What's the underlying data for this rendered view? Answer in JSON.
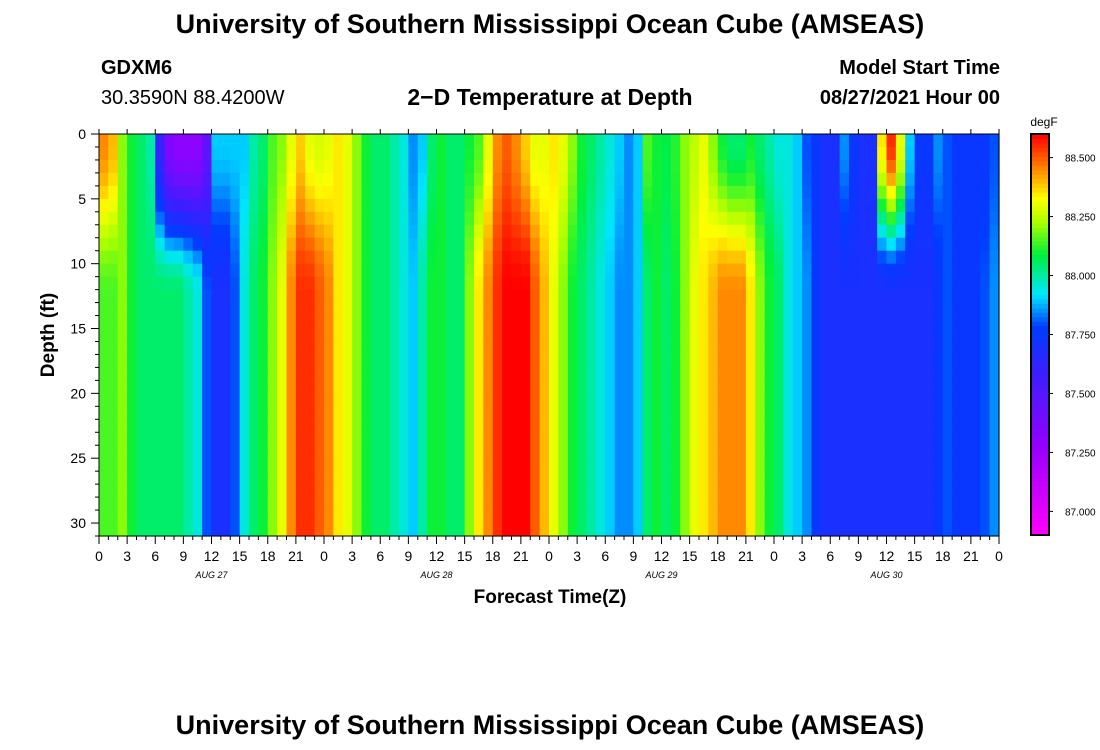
{
  "page_title": "University of Southern Mississippi Ocean Cube (AMSEAS)",
  "footer_title": "University of Southern Mississippi Ocean Cube (AMSEAS)",
  "station": {
    "id": "GDXM6",
    "coords": "30.3590N  88.4200W"
  },
  "model_start": {
    "label": "Model Start Time",
    "value": "08/27/2021 Hour 00"
  },
  "chart_data": {
    "type": "heatmap",
    "title": "2−D Temperature at Depth",
    "xlabel": "Forecast Time(Z)",
    "ylabel": "Depth (ft)",
    "x_hours": [
      0,
      96
    ],
    "ylim": [
      0,
      31
    ],
    "y_ticks": [
      0,
      5,
      10,
      15,
      20,
      25,
      30
    ],
    "x_tick_labels": [
      "0",
      "3",
      "6",
      "9",
      "12",
      "15",
      "18",
      "21",
      "0",
      "3",
      "6",
      "9",
      "12",
      "15",
      "18",
      "21",
      "0",
      "3",
      "6",
      "9",
      "12",
      "15",
      "18",
      "21",
      "0",
      "3",
      "6",
      "9",
      "12",
      "15",
      "18",
      "21",
      "0"
    ],
    "date_labels": [
      {
        "text": "AUG 27",
        "hour": 12
      },
      {
        "text": "AUG 28",
        "hour": 36
      },
      {
        "text": "AUG 29",
        "hour": 60
      },
      {
        "text": "AUG 30",
        "hour": 84
      }
    ],
    "colorbar": {
      "unit": "degF",
      "min": 86.9,
      "max": 88.6,
      "ticks": [
        "88.500",
        "88.250",
        "88.000",
        "87.750",
        "87.500",
        "87.250",
        "87.000"
      ],
      "tick_values": [
        88.5,
        88.25,
        88.0,
        87.75,
        87.5,
        87.25,
        87.0
      ]
    },
    "surface_profile": [
      {
        "hour": 0,
        "temp": 88.45
      },
      {
        "hour": 1,
        "temp": 88.4
      },
      {
        "hour": 2,
        "temp": 88.2
      },
      {
        "hour": 3,
        "temp": 88.1
      },
      {
        "hour": 4,
        "temp": 88.05
      },
      {
        "hour": 5,
        "temp": 88.0
      },
      {
        "hour": 6,
        "temp": 87.6
      },
      {
        "hour": 7,
        "temp": 87.35
      },
      {
        "hour": 8,
        "temp": 87.3
      },
      {
        "hour": 9,
        "temp": 87.3
      },
      {
        "hour": 10,
        "temp": 87.3
      },
      {
        "hour": 11,
        "temp": 87.45
      },
      {
        "hour": 12,
        "temp": 87.9
      },
      {
        "hour": 13,
        "temp": 87.9
      },
      {
        "hour": 14,
        "temp": 87.9
      },
      {
        "hour": 15,
        "temp": 87.9
      },
      {
        "hour": 16,
        "temp": 88.0
      },
      {
        "hour": 17,
        "temp": 88.05
      },
      {
        "hour": 18,
        "temp": 88.15
      },
      {
        "hour": 19,
        "temp": 88.2
      },
      {
        "hour": 20,
        "temp": 88.3
      },
      {
        "hour": 21,
        "temp": 88.38
      },
      {
        "hour": 22,
        "temp": 88.3
      },
      {
        "hour": 23,
        "temp": 88.28
      },
      {
        "hour": 24,
        "temp": 88.3
      },
      {
        "hour": 25,
        "temp": 88.35
      },
      {
        "hour": 26,
        "temp": 88.3
      },
      {
        "hour": 27,
        "temp": 88.2
      },
      {
        "hour": 28,
        "temp": 88.1
      },
      {
        "hour": 29,
        "temp": 88.05
      },
      {
        "hour": 30,
        "temp": 88.05
      },
      {
        "hour": 31,
        "temp": 88.0
      },
      {
        "hour": 32,
        "temp": 87.95
      },
      {
        "hour": 33,
        "temp": 87.85
      },
      {
        "hour": 34,
        "temp": 87.9
      },
      {
        "hour": 35,
        "temp": 88.05
      },
      {
        "hour": 36,
        "temp": 88.1
      },
      {
        "hour": 37,
        "temp": 88.05
      },
      {
        "hour": 38,
        "temp": 88.05
      },
      {
        "hour": 39,
        "temp": 88.1
      },
      {
        "hour": 40,
        "temp": 88.15
      },
      {
        "hour": 41,
        "temp": 88.3
      },
      {
        "hour": 42,
        "temp": 88.45
      },
      {
        "hour": 43,
        "temp": 88.5
      },
      {
        "hour": 44,
        "temp": 88.45
      },
      {
        "hour": 45,
        "temp": 88.38
      },
      {
        "hour": 46,
        "temp": 88.3
      },
      {
        "hour": 47,
        "temp": 88.3
      },
      {
        "hour": 48,
        "temp": 88.35
      },
      {
        "hour": 49,
        "temp": 88.3
      },
      {
        "hour": 50,
        "temp": 88.2
      },
      {
        "hour": 51,
        "temp": 88.1
      },
      {
        "hour": 52,
        "temp": 88.05
      },
      {
        "hour": 53,
        "temp": 88.0
      },
      {
        "hour": 54,
        "temp": 87.95
      },
      {
        "hour": 55,
        "temp": 87.9
      },
      {
        "hour": 56,
        "temp": 87.85
      },
      {
        "hour": 57,
        "temp": 87.9
      },
      {
        "hour": 58,
        "temp": 88.15
      },
      {
        "hour": 59,
        "temp": 88.1
      },
      {
        "hour": 60,
        "temp": 88.08
      },
      {
        "hour": 61,
        "temp": 88.12
      },
      {
        "hour": 62,
        "temp": 88.2
      },
      {
        "hour": 63,
        "temp": 88.25
      },
      {
        "hour": 64,
        "temp": 88.3
      },
      {
        "hour": 65,
        "temp": 88.2
      },
      {
        "hour": 66,
        "temp": 88.1
      },
      {
        "hour": 67,
        "temp": 88.05
      },
      {
        "hour": 68,
        "temp": 88.05
      },
      {
        "hour": 69,
        "temp": 88.1
      },
      {
        "hour": 70,
        "temp": 88.05
      },
      {
        "hour": 71,
        "temp": 88.0
      },
      {
        "hour": 72,
        "temp": 87.95
      },
      {
        "hour": 73,
        "temp": 87.95
      },
      {
        "hour": 74,
        "temp": 87.9
      },
      {
        "hour": 75,
        "temp": 87.8
      },
      {
        "hour": 76,
        "temp": 87.75
      },
      {
        "hour": 77,
        "temp": 87.7
      },
      {
        "hour": 78,
        "temp": 87.7
      },
      {
        "hour": 79,
        "temp": 87.85
      },
      {
        "hour": 80,
        "temp": 87.75
      },
      {
        "hour": 81,
        "temp": 87.7
      },
      {
        "hour": 82,
        "temp": 87.7
      },
      {
        "hour": 83,
        "temp": 88.35
      },
      {
        "hour": 84,
        "temp": 88.55
      },
      {
        "hour": 85,
        "temp": 88.3
      },
      {
        "hour": 86,
        "temp": 87.9
      },
      {
        "hour": 87,
        "temp": 87.75
      },
      {
        "hour": 88,
        "temp": 87.75
      },
      {
        "hour": 89,
        "temp": 87.85
      },
      {
        "hour": 90,
        "temp": 87.8
      },
      {
        "hour": 91,
        "temp": 87.75
      },
      {
        "hour": 92,
        "temp": 87.75
      },
      {
        "hour": 93,
        "temp": 87.75
      },
      {
        "hour": 94,
        "temp": 87.75
      },
      {
        "hour": 95,
        "temp": 87.8
      },
      {
        "hour": 96,
        "temp": 87.85
      }
    ],
    "bottom_profile": [
      {
        "hour": 0,
        "temp": 88.15
      },
      {
        "hour": 1,
        "temp": 88.15
      },
      {
        "hour": 2,
        "temp": 88.2
      },
      {
        "hour": 3,
        "temp": 88.1
      },
      {
        "hour": 4,
        "temp": 88.05
      },
      {
        "hour": 5,
        "temp": 88.05
      },
      {
        "hour": 6,
        "temp": 88.05
      },
      {
        "hour": 7,
        "temp": 88.05
      },
      {
        "hour": 8,
        "temp": 88.05
      },
      {
        "hour": 9,
        "temp": 88.0
      },
      {
        "hour": 10,
        "temp": 87.95
      },
      {
        "hour": 11,
        "temp": 87.8
      },
      {
        "hour": 12,
        "temp": 87.7
      },
      {
        "hour": 13,
        "temp": 87.7
      },
      {
        "hour": 14,
        "temp": 87.8
      },
      {
        "hour": 15,
        "temp": 87.95
      },
      {
        "hour": 16,
        "temp": 88.05
      },
      {
        "hour": 17,
        "temp": 88.1
      },
      {
        "hour": 18,
        "temp": 88.2
      },
      {
        "hour": 19,
        "temp": 88.3
      },
      {
        "hour": 20,
        "temp": 88.45
      },
      {
        "hour": 21,
        "temp": 88.55
      },
      {
        "hour": 22,
        "temp": 88.55
      },
      {
        "hour": 23,
        "temp": 88.5
      },
      {
        "hour": 24,
        "temp": 88.45
      },
      {
        "hour": 25,
        "temp": 88.35
      },
      {
        "hour": 26,
        "temp": 88.3
      },
      {
        "hour": 27,
        "temp": 88.2
      },
      {
        "hour": 28,
        "temp": 88.1
      },
      {
        "hour": 29,
        "temp": 88.05
      },
      {
        "hour": 30,
        "temp": 88.05
      },
      {
        "hour": 31,
        "temp": 88.0
      },
      {
        "hour": 32,
        "temp": 87.95
      },
      {
        "hour": 33,
        "temp": 87.9
      },
      {
        "hour": 34,
        "temp": 88.0
      },
      {
        "hour": 35,
        "temp": 88.1
      },
      {
        "hour": 36,
        "temp": 88.1
      },
      {
        "hour": 37,
        "temp": 88.05
      },
      {
        "hour": 38,
        "temp": 88.05
      },
      {
        "hour": 39,
        "temp": 88.2
      },
      {
        "hour": 40,
        "temp": 88.35
      },
      {
        "hour": 41,
        "temp": 88.45
      },
      {
        "hour": 42,
        "temp": 88.55
      },
      {
        "hour": 43,
        "temp": 88.6
      },
      {
        "hour": 44,
        "temp": 88.6
      },
      {
        "hour": 45,
        "temp": 88.6
      },
      {
        "hour": 46,
        "temp": 88.5
      },
      {
        "hour": 47,
        "temp": 88.4
      },
      {
        "hour": 48,
        "temp": 88.3
      },
      {
        "hour": 49,
        "temp": 88.2
      },
      {
        "hour": 50,
        "temp": 88.1
      },
      {
        "hour": 51,
        "temp": 88.05
      },
      {
        "hour": 52,
        "temp": 88.0
      },
      {
        "hour": 53,
        "temp": 87.95
      },
      {
        "hour": 54,
        "temp": 87.9
      },
      {
        "hour": 55,
        "temp": 87.85
      },
      {
        "hour": 56,
        "temp": 87.85
      },
      {
        "hour": 57,
        "temp": 87.9
      },
      {
        "hour": 58,
        "temp": 88.05
      },
      {
        "hour": 59,
        "temp": 88.1
      },
      {
        "hour": 60,
        "temp": 88.05
      },
      {
        "hour": 61,
        "temp": 88.1
      },
      {
        "hour": 62,
        "temp": 88.2
      },
      {
        "hour": 63,
        "temp": 88.3
      },
      {
        "hour": 64,
        "temp": 88.35
      },
      {
        "hour": 65,
        "temp": 88.4
      },
      {
        "hour": 66,
        "temp": 88.45
      },
      {
        "hour": 67,
        "temp": 88.45
      },
      {
        "hour": 68,
        "temp": 88.45
      },
      {
        "hour": 69,
        "temp": 88.35
      },
      {
        "hour": 70,
        "temp": 88.2
      },
      {
        "hour": 71,
        "temp": 88.1
      },
      {
        "hour": 72,
        "temp": 88.05
      },
      {
        "hour": 73,
        "temp": 87.95
      },
      {
        "hour": 74,
        "temp": 87.9
      },
      {
        "hour": 75,
        "temp": 87.85
      },
      {
        "hour": 76,
        "temp": 87.75
      },
      {
        "hour": 77,
        "temp": 87.7
      },
      {
        "hour": 78,
        "temp": 87.7
      },
      {
        "hour": 79,
        "temp": 87.7
      },
      {
        "hour": 80,
        "temp": 87.7
      },
      {
        "hour": 81,
        "temp": 87.7
      },
      {
        "hour": 82,
        "temp": 87.7
      },
      {
        "hour": 83,
        "temp": 87.7
      },
      {
        "hour": 84,
        "temp": 87.7
      },
      {
        "hour": 85,
        "temp": 87.7
      },
      {
        "hour": 86,
        "temp": 87.7
      },
      {
        "hour": 87,
        "temp": 87.7
      },
      {
        "hour": 88,
        "temp": 87.7
      },
      {
        "hour": 89,
        "temp": 87.75
      },
      {
        "hour": 90,
        "temp": 87.8
      },
      {
        "hour": 91,
        "temp": 87.75
      },
      {
        "hour": 92,
        "temp": 87.75
      },
      {
        "hour": 93,
        "temp": 87.75
      },
      {
        "hour": 94,
        "temp": 87.8
      },
      {
        "hour": 95,
        "temp": 87.85
      },
      {
        "hour": 96,
        "temp": 87.9
      }
    ]
  }
}
